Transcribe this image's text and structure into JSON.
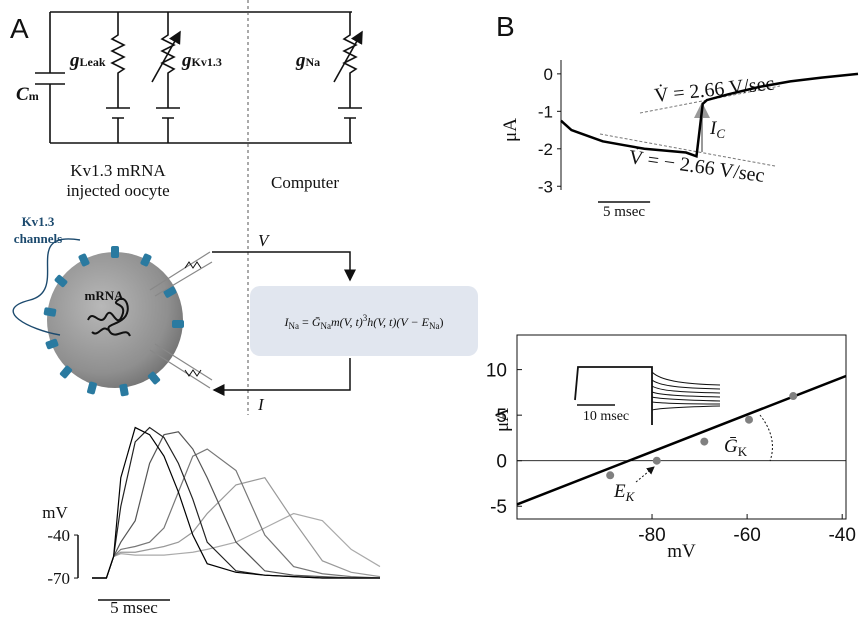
{
  "panel_labels": [
    "A",
    "B"
  ],
  "circuit": {
    "cm": [
      "C",
      "m"
    ],
    "g_leak": [
      "g",
      "Leak"
    ],
    "g_kv": [
      "g",
      "Kv1.3"
    ],
    "g_na": [
      "g",
      "Na"
    ]
  },
  "labels": {
    "oocyte": [
      "Kv1.3 mRNA",
      "injected oocyte"
    ],
    "computer": "Computer",
    "channels": [
      "Kv1.3",
      "channels"
    ],
    "mrna": "mRNA",
    "v": "V",
    "i": "I"
  },
  "equation": [
    "I",
    "Na",
    " = ",
    "Ḡ",
    "Na",
    "m(V, t)",
    "3",
    "h(V, t)(V − ",
    "E",
    "Na",
    ")"
  ],
  "chart_data": [
    {
      "type": "line",
      "ylabel": "mV",
      "x": [
        0,
        1,
        1.5,
        2,
        3,
        4,
        5,
        6,
        7,
        8,
        10,
        12,
        14,
        16,
        18,
        20
      ],
      "series": [
        {
          "color": "#000000",
          "values": [
            -70,
            -70,
            -55,
            0,
            35,
            30,
            15,
            -10,
            -40,
            -60,
            -66,
            -68,
            -69,
            -70,
            -70,
            -70
          ]
        },
        {
          "color": "#222222",
          "values": [
            -70,
            -70,
            -55,
            -20,
            25,
            35,
            28,
            10,
            -15,
            -45,
            -65,
            -68,
            -69,
            -70,
            -70,
            -70
          ]
        },
        {
          "color": "#555555",
          "values": [
            -70,
            -70,
            -55,
            -45,
            -30,
            10,
            30,
            32,
            20,
            0,
            -45,
            -65,
            -68,
            -69,
            -70,
            -70
          ]
        },
        {
          "color": "#777777",
          "values": [
            -70,
            -70,
            -55,
            -50,
            -48,
            -45,
            -35,
            -10,
            15,
            20,
            5,
            -40,
            -62,
            -67,
            -69,
            -70
          ]
        },
        {
          "color": "#999999",
          "values": [
            -70,
            -70,
            -55,
            -52,
            -52,
            -50,
            -48,
            -45,
            -38,
            -25,
            -5,
            0,
            -30,
            -58,
            -66,
            -69
          ]
        },
        {
          "color": "#aaaaaa",
          "values": [
            -70,
            -70,
            -55,
            -53,
            -54,
            -54,
            -54,
            -53,
            -52,
            -50,
            -45,
            -35,
            -25,
            -30,
            -50,
            -62
          ]
        }
      ],
      "xlim": [
        0,
        20
      ],
      "ylim": [
        -78,
        42
      ],
      "yticks": [
        -40,
        -70
      ],
      "scalebar": {
        "value": 5,
        "label": "5 msec"
      }
    },
    {
      "type": "line",
      "ylabel": "μA",
      "x": [
        0,
        1,
        2,
        4,
        6,
        8,
        10,
        12,
        13,
        13.6,
        14,
        16,
        19,
        22,
        25,
        28.5
      ],
      "values": [
        -1.25,
        -1.5,
        -1.6,
        -1.8,
        -1.9,
        -2.0,
        -2.05,
        -2.1,
        -2.2,
        -0.8,
        -0.7,
        -0.55,
        -0.35,
        -0.2,
        -0.1,
        0.0
      ],
      "color": "#000000",
      "xlim": [
        0,
        28.5
      ],
      "ylim": [
        -3.1,
        0.37
      ],
      "yticks": [
        0,
        -1,
        -2,
        -3
      ],
      "scalebar": {
        "value": 5,
        "label": "5 msec"
      },
      "annotations": {
        "rise": "V̇ = 2.66 V/sec",
        "fall": "V̇ = − 2.66 V/sec",
        "ic": [
          "I",
          "C"
        ]
      }
    },
    {
      "type": "scatter",
      "xlabel": "mV",
      "ylabel": "μA",
      "x": [
        -88.8,
        -79,
        -69,
        -59.6,
        -50.3
      ],
      "values": [
        -1.6,
        0,
        2.1,
        4.5,
        7.1
      ],
      "color": "#808080",
      "fit": {
        "x": [
          -108.4,
          -39.2
        ],
        "values": [
          -4.8,
          9.3
        ],
        "color": "#000000"
      },
      "xlim": [
        -108.4,
        -39.2
      ],
      "ylim": [
        -6.4,
        13.8
      ],
      "xticks": [
        -80,
        -60,
        -40
      ],
      "yticks": [
        -5,
        0,
        5,
        10
      ],
      "annotations": {
        "gk": [
          "Ḡ",
          "K"
        ],
        "ek": [
          "E",
          "K"
        ]
      },
      "inset_scalebar": {
        "value": 10,
        "label": "10 msec"
      }
    }
  ]
}
